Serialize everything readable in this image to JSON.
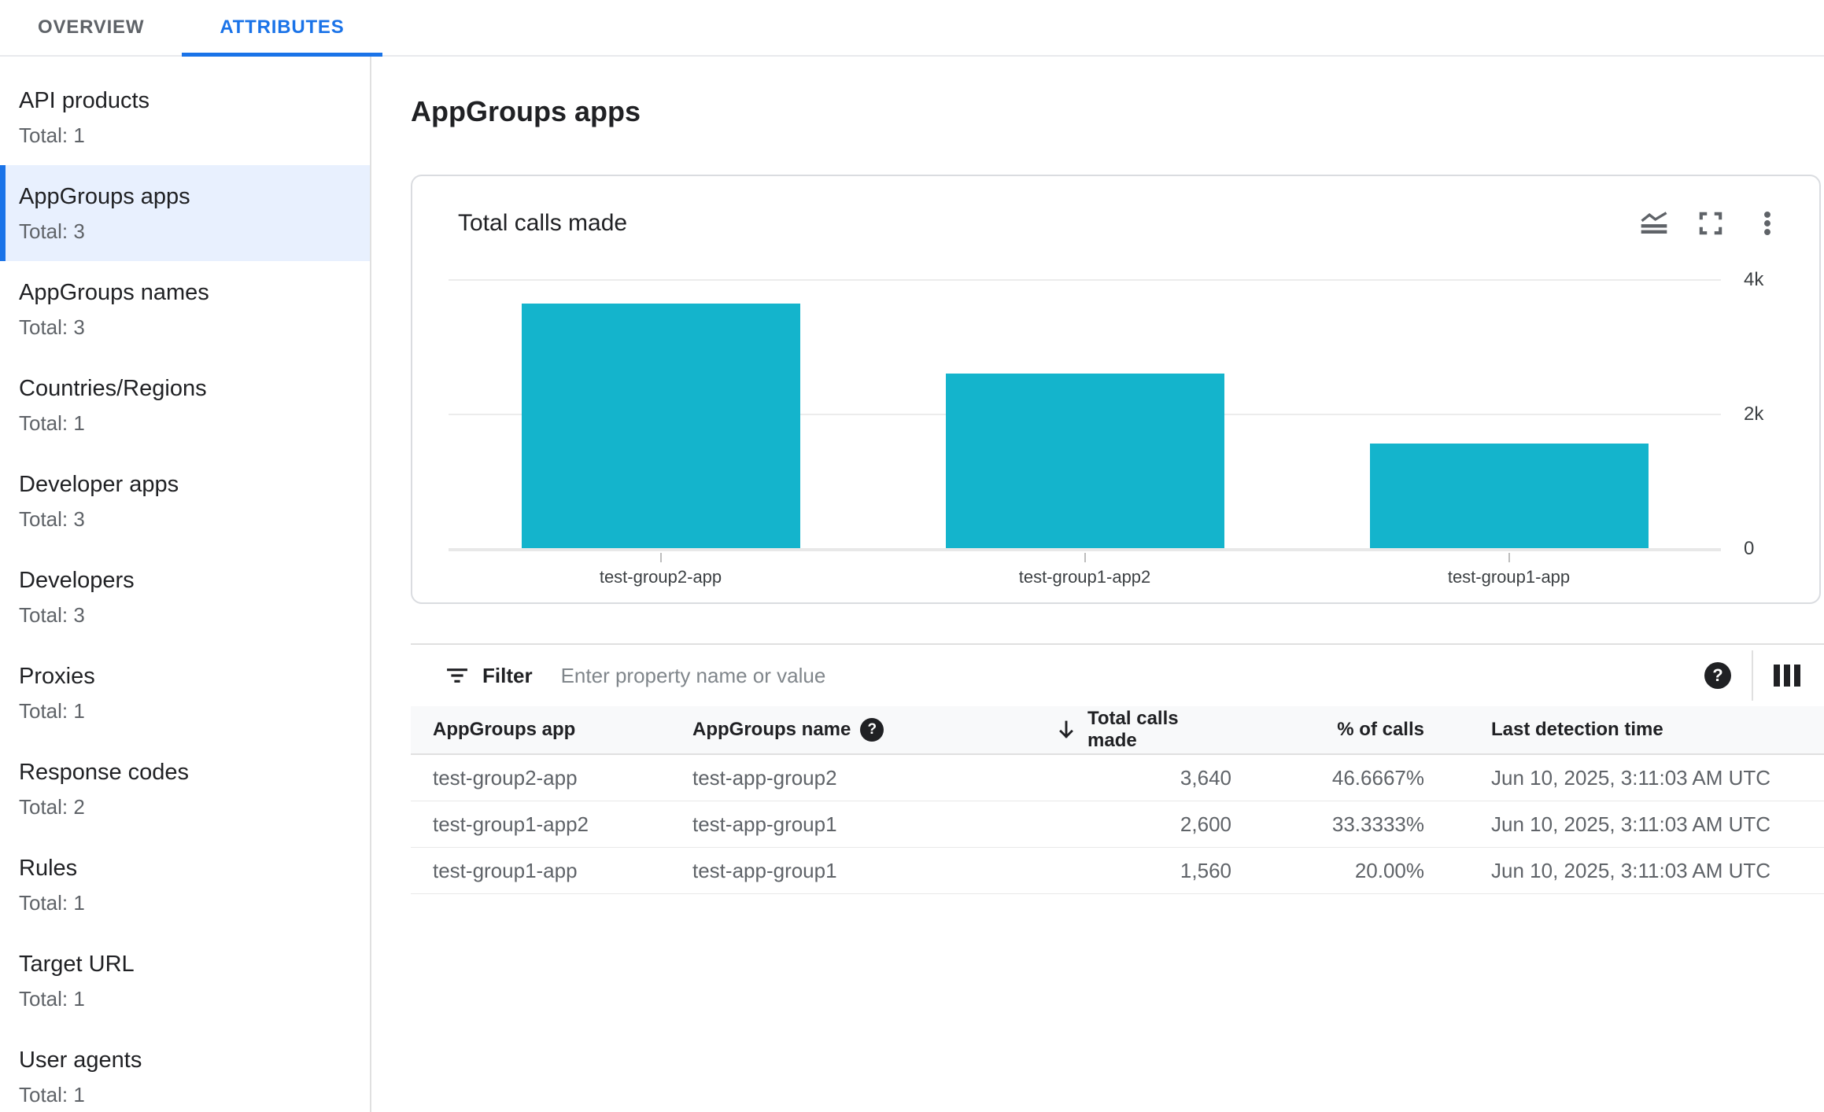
{
  "header": {
    "tabs": [
      {
        "label": "OVERVIEW",
        "active": false
      },
      {
        "label": "ATTRIBUTES",
        "active": true
      }
    ]
  },
  "sidebar": {
    "items": [
      {
        "label": "API products",
        "total": "Total: 1",
        "selected": false
      },
      {
        "label": "AppGroups apps",
        "total": "Total: 3",
        "selected": true
      },
      {
        "label": "AppGroups names",
        "total": "Total: 3",
        "selected": false
      },
      {
        "label": "Countries/Regions",
        "total": "Total: 1",
        "selected": false
      },
      {
        "label": "Developer apps",
        "total": "Total: 3",
        "selected": false
      },
      {
        "label": "Developers",
        "total": "Total: 3",
        "selected": false
      },
      {
        "label": "Proxies",
        "total": "Total: 1",
        "selected": false
      },
      {
        "label": "Response codes",
        "total": "Total: 2",
        "selected": false
      },
      {
        "label": "Rules",
        "total": "Total: 1",
        "selected": false
      },
      {
        "label": "Target URL",
        "total": "Total: 1",
        "selected": false
      },
      {
        "label": "User agents",
        "total": "Total: 1",
        "selected": false
      }
    ]
  },
  "main": {
    "page_title": "AppGroups apps",
    "card_title": "Total calls made",
    "card_icons": [
      "chart-type-icon",
      "fullscreen-icon",
      "more-options-icon"
    ],
    "filter": {
      "label": "Filter",
      "placeholder": "Enter property name or value"
    }
  },
  "chart_data": {
    "type": "bar",
    "title": "Total calls made",
    "categories": [
      "test-group2-app",
      "test-group1-app2",
      "test-group1-app"
    ],
    "values": [
      3640,
      2600,
      1560
    ],
    "ylim": [
      0,
      4000
    ],
    "yticks": [
      {
        "value": 4000,
        "label": "4k"
      },
      {
        "value": 2000,
        "label": "2k"
      },
      {
        "value": 0,
        "label": "0"
      }
    ],
    "bar_color": "#14b4cc",
    "grid": "horizontal",
    "legend": "none",
    "ytick_side": "right"
  },
  "table": {
    "columns": [
      {
        "label": "AppGroups app",
        "align": "left",
        "help_icon": false,
        "sort": null
      },
      {
        "label": "AppGroups name",
        "align": "left",
        "help_icon": true,
        "sort": null
      },
      {
        "label": "Total calls made",
        "align": "right",
        "help_icon": false,
        "sort": "desc"
      },
      {
        "label": "% of calls",
        "align": "right",
        "help_icon": false,
        "sort": null
      },
      {
        "label": "Last detection time",
        "align": "left",
        "help_icon": false,
        "sort": null
      }
    ],
    "rows": [
      {
        "app": "test-group2-app",
        "name": "test-app-group2",
        "calls": "3,640",
        "pct": "46.6667%",
        "time": "Jun 10, 2025, 3:11:03 AM UTC"
      },
      {
        "app": "test-group1-app2",
        "name": "test-app-group1",
        "calls": "2,600",
        "pct": "33.3333%",
        "time": "Jun 10, 2025, 3:11:03 AM UTC"
      },
      {
        "app": "test-group1-app",
        "name": "test-app-group1",
        "calls": "1,560",
        "pct": "20.00%",
        "time": "Jun 10, 2025, 3:11:03 AM UTC"
      }
    ]
  },
  "colors": {
    "accent": "#1a73e8",
    "bar": "#14b4cc",
    "selected_item_bg": "#e8f0fe",
    "divider": "#e0e0e0",
    "secondary_text": "#5f6368"
  }
}
